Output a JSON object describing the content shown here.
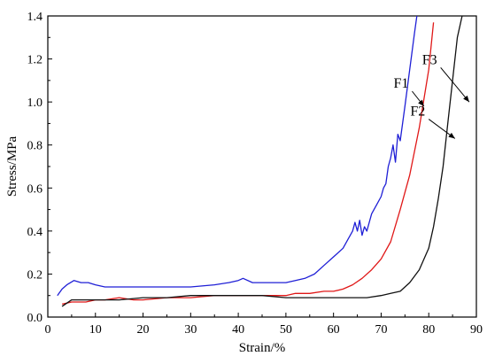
{
  "chart_data": {
    "type": "line",
    "title": "",
    "xlabel": "Strain/%",
    "ylabel": "Stress/MPa",
    "xlim": [
      0,
      90
    ],
    "ylim": [
      0,
      1.4
    ],
    "xticks": [
      0,
      10,
      20,
      30,
      40,
      50,
      60,
      70,
      80,
      90
    ],
    "xtick_labels": [
      "0",
      "10",
      "20",
      "30",
      "40",
      "50",
      "60",
      "70",
      "80",
      "90"
    ],
    "yticks": [
      0.0,
      0.2,
      0.4,
      0.6,
      0.8,
      1.0,
      1.2,
      1.4
    ],
    "ytick_labels": [
      "0.0",
      "0.2",
      "0.4",
      "0.6",
      "0.8",
      "1.0",
      "1.2",
      "1.4"
    ],
    "grid": false,
    "legend": "none",
    "series": [
      {
        "name": "F1",
        "color": "#1f1fd6",
        "x": [
          2.0,
          3.0,
          4.0,
          5.5,
          7.0,
          8.5,
          10,
          12,
          15,
          20,
          25,
          30,
          35,
          38,
          40,
          41,
          43,
          45,
          48,
          50,
          52,
          54,
          56,
          58,
          60,
          62,
          63,
          64,
          64.5,
          65,
          65.5,
          66,
          66.5,
          67,
          68,
          69,
          70,
          70.5,
          71,
          71.5,
          72,
          72.5,
          73,
          73.5,
          74,
          75,
          76,
          77,
          77.5
        ],
        "y": [
          0.1,
          0.13,
          0.15,
          0.17,
          0.16,
          0.16,
          0.15,
          0.14,
          0.14,
          0.14,
          0.14,
          0.14,
          0.15,
          0.16,
          0.17,
          0.18,
          0.16,
          0.16,
          0.16,
          0.16,
          0.17,
          0.18,
          0.2,
          0.24,
          0.28,
          0.32,
          0.36,
          0.4,
          0.44,
          0.4,
          0.45,
          0.38,
          0.42,
          0.4,
          0.48,
          0.52,
          0.56,
          0.6,
          0.62,
          0.7,
          0.74,
          0.8,
          0.72,
          0.85,
          0.82,
          0.98,
          1.15,
          1.32,
          1.4
        ]
      },
      {
        "name": "F2",
        "color": "#e01818",
        "x": [
          3.0,
          5,
          8,
          10,
          12,
          15,
          18,
          20,
          25,
          30,
          35,
          38,
          40,
          42,
          45,
          50,
          52,
          55,
          58,
          60,
          62,
          64,
          66,
          68,
          70,
          72,
          74,
          76,
          78,
          80,
          81
        ],
        "y": [
          0.06,
          0.07,
          0.07,
          0.08,
          0.08,
          0.09,
          0.08,
          0.08,
          0.09,
          0.09,
          0.1,
          0.1,
          0.1,
          0.1,
          0.1,
          0.1,
          0.11,
          0.11,
          0.12,
          0.12,
          0.13,
          0.15,
          0.18,
          0.22,
          0.27,
          0.35,
          0.5,
          0.66,
          0.88,
          1.15,
          1.37
        ]
      },
      {
        "name": "F3",
        "color": "#111111",
        "x": [
          3.0,
          5,
          8,
          10,
          15,
          20,
          25,
          30,
          35,
          40,
          45,
          50,
          55,
          60,
          65,
          67,
          70,
          72,
          74,
          76,
          78,
          80,
          81,
          82,
          83,
          84,
          85,
          86,
          87
        ],
        "y": [
          0.05,
          0.08,
          0.08,
          0.08,
          0.08,
          0.09,
          0.09,
          0.1,
          0.1,
          0.1,
          0.1,
          0.09,
          0.09,
          0.09,
          0.09,
          0.09,
          0.1,
          0.11,
          0.12,
          0.16,
          0.22,
          0.32,
          0.42,
          0.55,
          0.7,
          0.9,
          1.1,
          1.3,
          1.4
        ]
      }
    ],
    "annotations": [
      {
        "text": "F1",
        "series": "F1",
        "arrow_from": [
          76.5,
          1.05
        ],
        "arrow_to": [
          79.0,
          0.98
        ]
      },
      {
        "text": "F2",
        "series": "F2",
        "arrow_from": [
          80.0,
          0.92
        ],
        "arrow_to": [
          85.5,
          0.83
        ]
      },
      {
        "text": "F3",
        "series": "F3",
        "arrow_from": [
          82.5,
          1.16
        ],
        "arrow_to": [
          88.5,
          1.0
        ]
      }
    ]
  }
}
